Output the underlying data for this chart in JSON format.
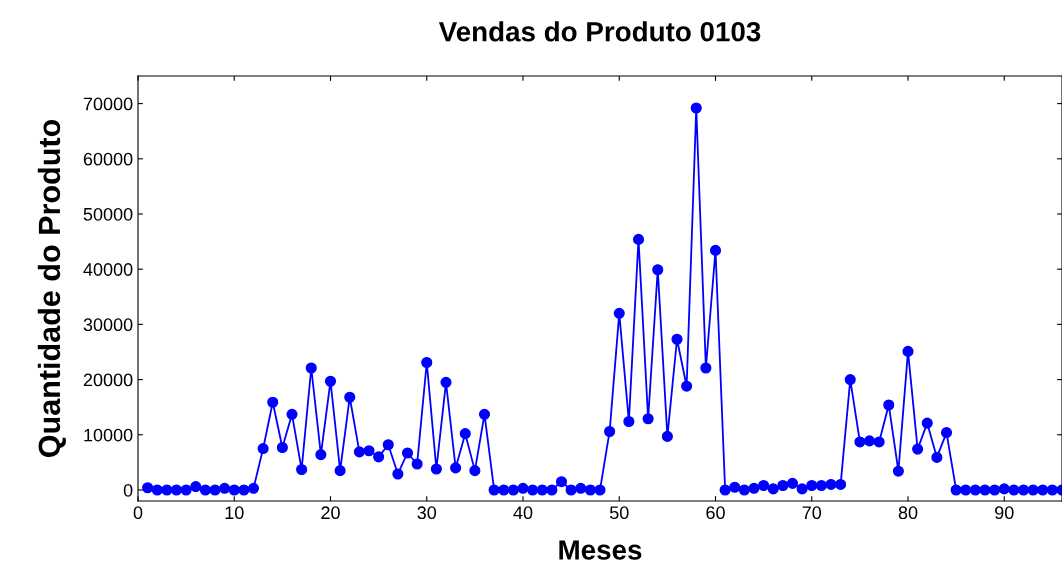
{
  "chart_data": {
    "type": "line",
    "title": "Vendas do Produto 0103",
    "xlabel": "Meses",
    "ylabel": "Quantidade do Produto",
    "x": [
      1,
      2,
      3,
      4,
      5,
      6,
      7,
      8,
      9,
      10,
      11,
      12,
      13,
      14,
      15,
      16,
      17,
      18,
      19,
      20,
      21,
      22,
      23,
      24,
      25,
      26,
      27,
      28,
      29,
      30,
      31,
      32,
      33,
      34,
      35,
      36,
      37,
      38,
      39,
      40,
      41,
      42,
      43,
      44,
      45,
      46,
      47,
      48,
      49,
      50,
      51,
      52,
      53,
      54,
      55,
      56,
      57,
      58,
      59,
      60,
      61,
      62,
      63,
      64,
      65,
      66,
      67,
      68,
      69,
      70,
      71,
      72,
      73,
      74,
      75,
      76,
      77,
      78,
      79,
      80,
      81,
      82,
      83,
      84,
      85,
      86,
      87,
      88,
      89,
      90,
      91,
      92,
      93,
      94,
      95,
      96
    ],
    "series": [
      {
        "color": "#0000ff",
        "values": [
          400,
          0,
          0,
          0,
          0,
          600,
          0,
          0,
          300,
          0,
          0,
          300,
          7500,
          15900,
          7700,
          13700,
          3700,
          22100,
          6400,
          19700,
          3500,
          16800,
          6900,
          7100,
          6000,
          8200,
          2900,
          6700,
          4700,
          23100,
          3800,
          19500,
          4000,
          10200,
          3500,
          13700,
          0,
          0,
          0,
          300,
          0,
          0,
          0,
          1500,
          0,
          300,
          0,
          0,
          10600,
          32000,
          12400,
          45400,
          12900,
          39900,
          9700,
          27300,
          18800,
          69200,
          22100,
          43400,
          0,
          500,
          0,
          300,
          800,
          200,
          800,
          1200,
          200,
          800,
          800,
          1000,
          1000,
          20000,
          8700,
          8900,
          8700,
          15400,
          3400,
          25100,
          7400,
          12100,
          5900,
          10400,
          0,
          0,
          0,
          0,
          0,
          200,
          0,
          0,
          0,
          0,
          0,
          0
        ]
      }
    ],
    "xlim": [
      0,
      96
    ],
    "ylim": [
      -2000,
      75000
    ],
    "xticks": [
      0,
      10,
      20,
      30,
      40,
      50,
      60,
      70,
      80,
      90
    ],
    "yticks": [
      0,
      10000,
      20000,
      30000,
      40000,
      50000,
      60000,
      70000
    ],
    "marker": "circle",
    "line_style": "solid",
    "grid": false,
    "legend": false
  }
}
